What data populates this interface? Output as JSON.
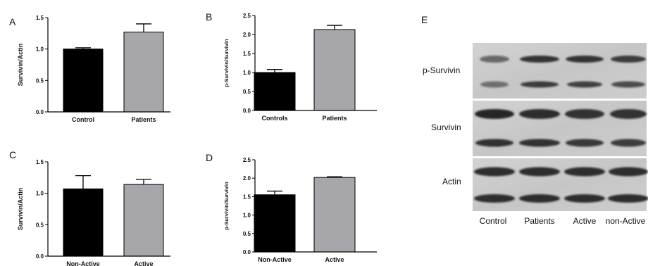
{
  "chart_data": [
    {
      "panel": "A",
      "type": "bar",
      "ylabel": "Survivin/Actin",
      "categories": [
        "Control",
        "Patients"
      ],
      "values": [
        1.0,
        1.27
      ],
      "errors": [
        0.02,
        0.13
      ],
      "colors": [
        "#000000",
        "#a6a6ab"
      ],
      "ylim": [
        0,
        1.5
      ],
      "yticks": [
        "0.0",
        "0.5",
        "1.0",
        "1.5"
      ]
    },
    {
      "panel": "B",
      "type": "bar",
      "ylabel": "p-Survivin/Survivin",
      "categories": [
        "Controls",
        "Patients"
      ],
      "values": [
        1.0,
        2.13
      ],
      "errors": [
        0.08,
        0.11
      ],
      "colors": [
        "#000000",
        "#a6a6ab"
      ],
      "ylim": [
        0,
        2.5
      ],
      "yticks": [
        "0.0",
        "0.5",
        "1.0",
        "1.5",
        "2.0",
        "2.5"
      ]
    },
    {
      "panel": "C",
      "type": "bar",
      "ylabel": "Survivin/Actin",
      "categories": [
        "Non-Active",
        "Active"
      ],
      "values": [
        1.07,
        1.14
      ],
      "errors": [
        0.21,
        0.08
      ],
      "colors": [
        "#000000",
        "#a6a6ab"
      ],
      "ylim": [
        0,
        1.5
      ],
      "yticks": [
        "0.0",
        "0.5",
        "1.0",
        "1.5"
      ]
    },
    {
      "panel": "D",
      "type": "bar",
      "ylabel": "p-Survivin/Survivin",
      "categories": [
        "Non-Active",
        "Active"
      ],
      "values": [
        1.55,
        2.02
      ],
      "errors": [
        0.1,
        0.02
      ],
      "colors": [
        "#000000",
        "#a6a6ab"
      ],
      "ylim": [
        0,
        2.5
      ],
      "yticks": [
        "0.0",
        "0.5",
        "1.0",
        "1.5",
        "2.0",
        "2.5"
      ]
    }
  ],
  "blot": {
    "panel": "E",
    "rows": [
      "p-Survivin",
      "Survivin",
      "Actin"
    ],
    "lanes": [
      "Control",
      "Patients",
      "Active",
      "non-Active"
    ]
  }
}
